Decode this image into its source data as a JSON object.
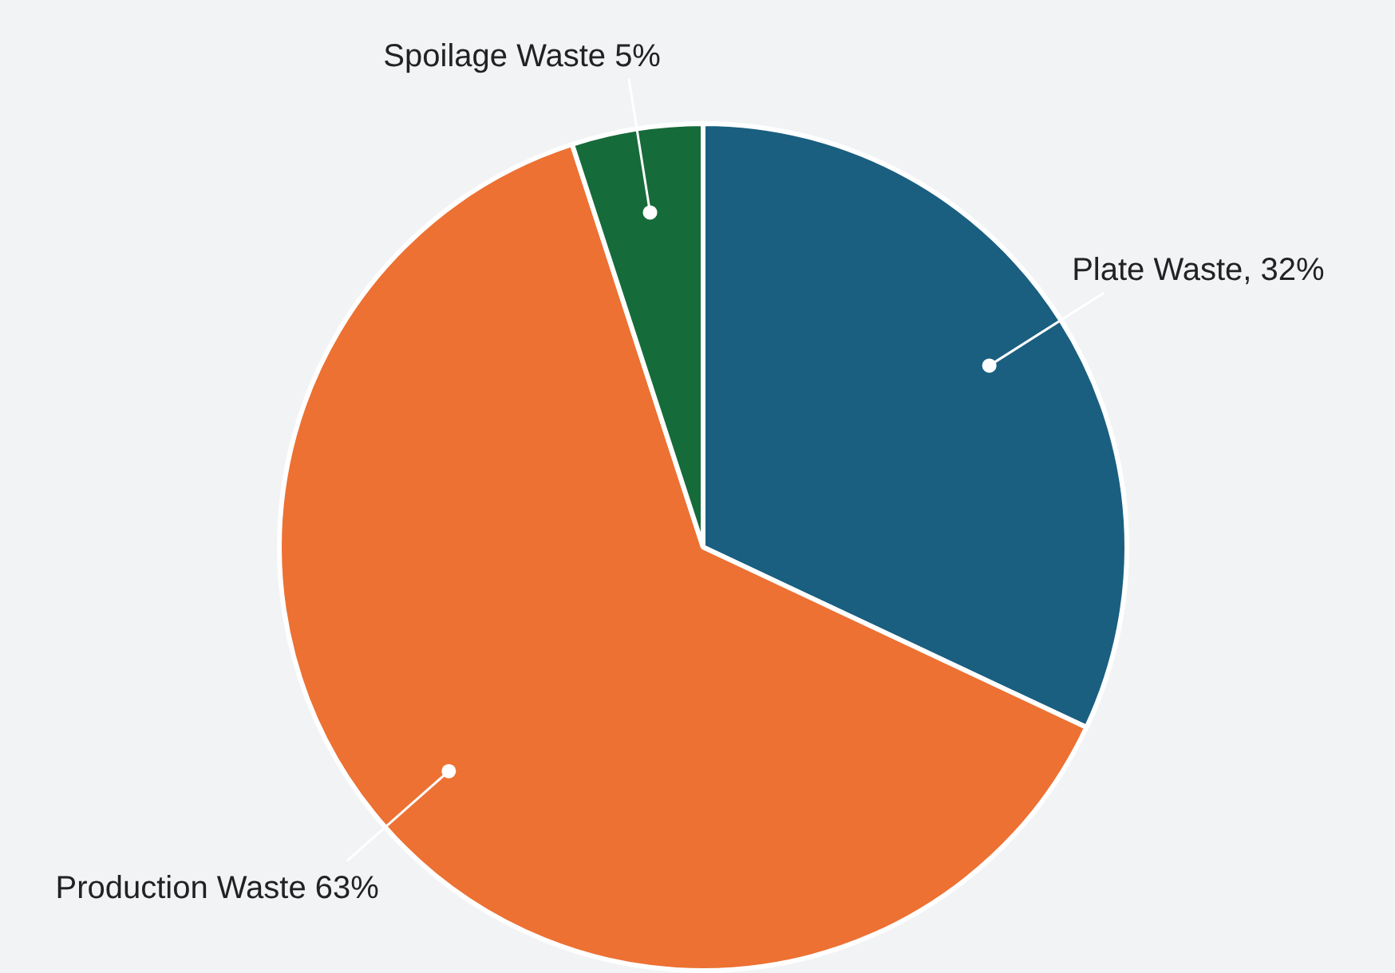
{
  "chart_data": {
    "type": "pie",
    "categories": [
      "Plate Waste, 32%",
      "Production Waste 63%",
      "Spoilage Waste 5%"
    ],
    "values": [
      32,
      63,
      5
    ],
    "colors": [
      "#1a5f80",
      "#ec7133",
      "#166b3a"
    ],
    "legend": false
  }
}
